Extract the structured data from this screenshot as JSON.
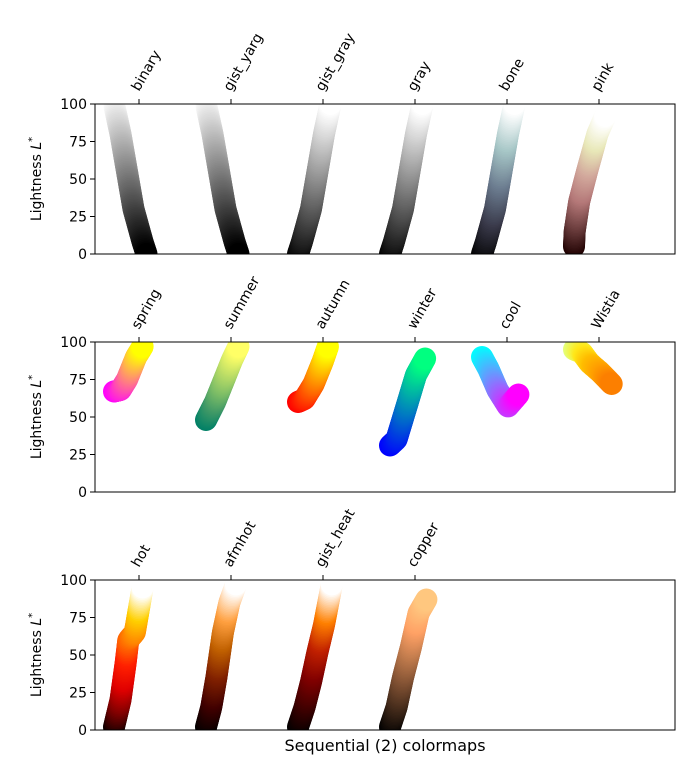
{
  "chart_data": [
    {
      "type": "scatter",
      "ylabel": "Lightness L*",
      "ylim": [
        0,
        100
      ],
      "yticks": [
        0,
        25,
        50,
        75,
        100
      ],
      "categories": [
        "binary",
        "gist_yarg",
        "gist_gray",
        "gray",
        "bone",
        "pink"
      ],
      "series": [
        {
          "name": "binary",
          "points": [
            [
              0,
              100
            ],
            [
              0.5,
              80
            ],
            [
              1.5,
              30
            ],
            [
              2.2,
              8
            ],
            [
              2.5,
              0
            ]
          ],
          "colors": [
            "#ffffff",
            "#bfbfbf",
            "#808080",
            "#404040",
            "#000000"
          ]
        },
        {
          "name": "gist_yarg",
          "points": [
            [
              0,
              100
            ],
            [
              0.5,
              80
            ],
            [
              1.5,
              30
            ],
            [
              2.2,
              8
            ],
            [
              2.5,
              0
            ]
          ],
          "colors": [
            "#ffffff",
            "#bfbfbf",
            "#808080",
            "#404040",
            "#000000"
          ]
        },
        {
          "name": "gist_gray",
          "points": [
            [
              0,
              0
            ],
            [
              0.3,
              8
            ],
            [
              1.0,
              30
            ],
            [
              2.0,
              80
            ],
            [
              2.5,
              100
            ]
          ],
          "colors": [
            "#000000",
            "#404040",
            "#808080",
            "#bfbfbf",
            "#ffffff"
          ]
        },
        {
          "name": "gray",
          "points": [
            [
              0,
              0
            ],
            [
              0.3,
              8
            ],
            [
              1.0,
              30
            ],
            [
              2.0,
              80
            ],
            [
              2.5,
              100
            ]
          ],
          "colors": [
            "#000000",
            "#404040",
            "#808080",
            "#bfbfbf",
            "#ffffff"
          ]
        },
        {
          "name": "bone",
          "points": [
            [
              0,
              0
            ],
            [
              0.3,
              8
            ],
            [
              1.0,
              30
            ],
            [
              2.0,
              80
            ],
            [
              2.5,
              100
            ]
          ],
          "colors": [
            "#000000",
            "#383848",
            "#6a7a8e",
            "#a6c6c6",
            "#ffffff"
          ]
        },
        {
          "name": "pink",
          "points": [
            [
              0,
              5
            ],
            [
              0.05,
              15
            ],
            [
              0.4,
              35
            ],
            [
              1.0,
              55
            ],
            [
              1.8,
              80
            ],
            [
              2.4,
              92
            ]
          ],
          "colors": [
            "#1e0000",
            "#6b3d3d",
            "#b47878",
            "#d2a89c",
            "#e8e8b8",
            "#ffffff"
          ]
        }
      ]
    },
    {
      "type": "scatter",
      "ylabel": "Lightness L*",
      "ylim": [
        0,
        100
      ],
      "yticks": [
        0,
        25,
        50,
        75,
        100
      ],
      "categories": [
        "spring",
        "summer",
        "autumn",
        "winter",
        "cool",
        "Wistia"
      ],
      "series": [
        {
          "name": "spring",
          "points": [
            [
              0,
              67
            ],
            [
              0.5,
              68
            ],
            [
              1.0,
              75
            ],
            [
              1.7,
              90
            ],
            [
              2.2,
              97
            ]
          ],
          "colors": [
            "#ff00ff",
            "#ff40bf",
            "#ff8080",
            "#ffbf40",
            "#ffff00"
          ]
        },
        {
          "name": "summer",
          "points": [
            [
              0,
              48
            ],
            [
              0.7,
              60
            ],
            [
              1.4,
              75
            ],
            [
              2.0,
              88
            ],
            [
              2.5,
              97
            ]
          ],
          "colors": [
            "#008066",
            "#409966",
            "#80bf66",
            "#bfdf66",
            "#ffff66"
          ]
        },
        {
          "name": "autumn",
          "points": [
            [
              0,
              60
            ],
            [
              0.5,
              62
            ],
            [
              1.2,
              72
            ],
            [
              1.9,
              87
            ],
            [
              2.3,
              97
            ]
          ],
          "colors": [
            "#ff0000",
            "#ff4000",
            "#ff8000",
            "#ffbf00",
            "#ffff00"
          ]
        },
        {
          "name": "winter",
          "points": [
            [
              0,
              31
            ],
            [
              0.5,
              35
            ],
            [
              1.2,
              55
            ],
            [
              2.0,
              78
            ],
            [
              2.7,
              89
            ]
          ],
          "colors": [
            "#0000ff",
            "#0040df",
            "#0080bf",
            "#00bf9f",
            "#00ff80"
          ]
        },
        {
          "name": "cool",
          "points": [
            [
              0,
              90
            ],
            [
              0.5,
              82
            ],
            [
              1.2,
              68
            ],
            [
              2.0,
              57
            ],
            [
              2.8,
              65
            ]
          ],
          "colors": [
            "#00ffff",
            "#40bfff",
            "#8080ff",
            "#bf40ff",
            "#ff00ff"
          ]
        },
        {
          "name": "Wistia",
          "points": [
            [
              0,
              95
            ],
            [
              0.6,
              93
            ],
            [
              1.2,
              86
            ],
            [
              2.0,
              80
            ],
            [
              2.9,
              72
            ]
          ],
          "colors": [
            "#e4ff7a",
            "#ffe81a",
            "#ffbd00",
            "#ffa000",
            "#fc7f00"
          ]
        }
      ]
    },
    {
      "type": "scatter",
      "ylabel": "Lightness L*",
      "ylim": [
        0,
        100
      ],
      "yticks": [
        0,
        25,
        50,
        75,
        100
      ],
      "categories": [
        "hot",
        "afmhot",
        "gist_heat",
        "copper"
      ],
      "series": [
        {
          "name": "hot",
          "points": [
            [
              0,
              2
            ],
            [
              0.5,
              20
            ],
            [
              0.9,
              45
            ],
            [
              1.1,
              60
            ],
            [
              1.6,
              65
            ],
            [
              2.0,
              85
            ],
            [
              2.2,
              95
            ]
          ],
          "colors": [
            "#0b0000",
            "#800000",
            "#e00000",
            "#ff2000",
            "#ff8000",
            "#ffd000",
            "#ffffff"
          ]
        },
        {
          "name": "afmhot",
          "points": [
            [
              0,
              2
            ],
            [
              0.4,
              15
            ],
            [
              0.8,
              35
            ],
            [
              1.3,
              65
            ],
            [
              1.8,
              85
            ],
            [
              2.3,
              97
            ]
          ],
          "colors": [
            "#000000",
            "#400000",
            "#802000",
            "#c06000",
            "#ffa040",
            "#ffffff"
          ]
        },
        {
          "name": "gist_heat",
          "points": [
            [
              0,
              2
            ],
            [
              0.5,
              15
            ],
            [
              1.0,
              32
            ],
            [
              1.5,
              52
            ],
            [
              2.0,
              70
            ],
            [
              2.6,
              97
            ]
          ],
          "colors": [
            "#000000",
            "#400000",
            "#800000",
            "#c02000",
            "#ff8000",
            "#ffffff"
          ]
        },
        {
          "name": "copper",
          "points": [
            [
              0,
              2
            ],
            [
              0.5,
              15
            ],
            [
              1.0,
              35
            ],
            [
              1.6,
              55
            ],
            [
              2.2,
              78
            ],
            [
              2.8,
              87
            ]
          ],
          "colors": [
            "#000000",
            "#3f2819",
            "#7f5032",
            "#bf7a4c",
            "#ffa165",
            "#ffc77f"
          ]
        }
      ]
    }
  ],
  "figure_xlabel": "Sequential (2) colormaps"
}
